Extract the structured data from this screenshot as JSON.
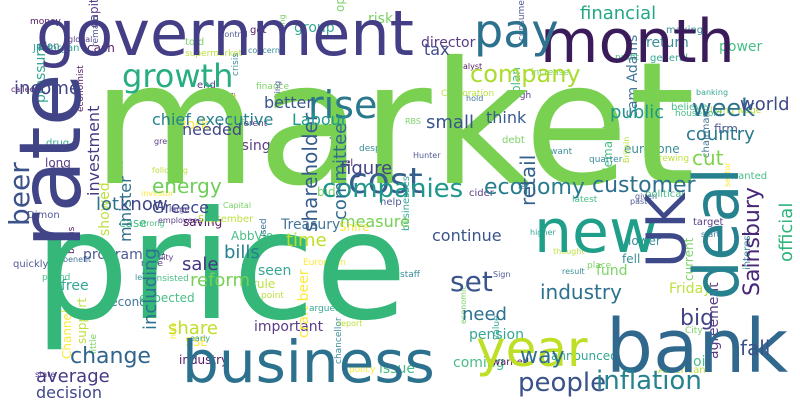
{
  "cloud": {
    "words": {
      "market": "market",
      "price": "price",
      "government": "government",
      "month": "month",
      "pay": "pay",
      "rate": "rate",
      "business": "business",
      "bank": "bank",
      "deal": "deal",
      "year": "year",
      "new": "new",
      "uk": "UK",
      "rise": "rise",
      "growth": "growth",
      "company": "company",
      "cost": "cost",
      "companies": "companies",
      "beer": "beer",
      "economy": "economy",
      "customer": "customer",
      "people": "people",
      "inflation": "inflation",
      "change": "change",
      "average": "average",
      "decision": "decision",
      "energy": "energy",
      "week": "week",
      "world": "world",
      "financial": "financial",
      "sainsbury": "Sainsbury",
      "official": "official",
      "industry": "industry",
      "big": "big",
      "fall": "fall",
      "set": "set",
      "way": "way",
      "cut": "cut",
      "country": "country",
      "figure": "figure",
      "shareholder": "shareholder",
      "committee": "committee",
      "time": "time",
      "know": "know",
      "lot": "lot",
      "greece": "Greece",
      "sale": "sale",
      "bills": "bills",
      "reform": "reform",
      "share": "share",
      "measure": "measure",
      "continue": "continue",
      "need": "need",
      "chief_executive": "chief executive",
      "labour": "Labour",
      "small": "small",
      "public": "public",
      "retail": "retail",
      "minister": "minister",
      "including": "including",
      "think": "think",
      "investment": "investment",
      "tax": "tax",
      "better": "better",
      "income": "income",
      "needed": "needed"
    },
    "small_words": [
      "craft beer",
      "hold",
      "investor",
      "different",
      "Britain",
      "higher",
      "state",
      "household",
      "quarter",
      "consumer",
      "City",
      "issue",
      "used",
      "firm",
      "chairman",
      "free",
      "programme",
      "expected",
      "sector",
      "open",
      "crisis",
      "little",
      "data",
      "European",
      "Corporation",
      "money",
      "Hunter",
      "despite",
      "report",
      "eurozone",
      "political",
      "group",
      "seen",
      "fell",
      "start",
      "came",
      "policy",
      "raise",
      "point",
      "past",
      "green",
      "quickly",
      "drug",
      "benefit",
      "work",
      "strong",
      "Friday",
      "bonus",
      "job",
      "thought",
      "value",
      "help",
      "far",
      "JPMorgan",
      "brewing",
      "Sam Adams",
      "Nestlé",
      "risk",
      "end",
      "businesses",
      "steel",
      "pressure",
      "profit",
      "fund",
      "September",
      "early",
      "warned",
      "called",
      "making",
      "economist",
      "taking",
      "lower",
      "insisted",
      "argued",
      "level",
      "long",
      "industry",
      "wanted",
      "want",
      "current",
      "important",
      "rule",
      "RBS",
      "got",
      "target",
      "quality",
      "plan",
      "coming",
      "agreement",
      "director",
      "chancellor",
      "believe",
      "power",
      "staff",
      "showed",
      "finance",
      "living wage",
      "increase",
      "latest",
      "place",
      "announced",
      "concern",
      "remain",
      "control",
      "capitalism",
      "Dimon",
      "Shire",
      "following",
      "analyst",
      "AbbVie",
      "debt",
      "oil",
      "banking",
      "economic",
      "global",
      "bid",
      "cash",
      "case",
      "given",
      "told",
      "large",
      "rising",
      "support",
      "thing",
      "general",
      "result",
      "plan",
      "pension",
      "Capital",
      "supermarket",
      "Sign",
      "demand",
      "second",
      "pound",
      "Treasury",
      "Authority",
      "American",
      "Channel",
      "SSE",
      "saving",
      "interest",
      "cider",
      "employees",
      "hike",
      "tough",
      "return"
    ]
  }
}
